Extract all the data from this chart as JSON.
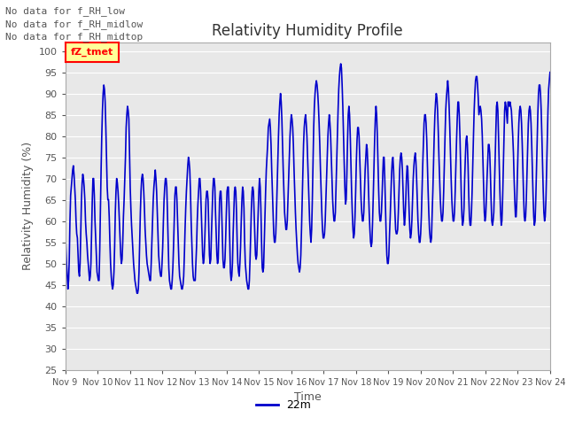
{
  "title": "Relativity Humidity Profile",
  "ylabel": "Relativity Humidity (%)",
  "xlabel": "Time",
  "ylim": [
    25,
    102
  ],
  "yticks": [
    25,
    30,
    35,
    40,
    45,
    50,
    55,
    60,
    65,
    70,
    75,
    80,
    85,
    90,
    95,
    100
  ],
  "line_color": "#0000CC",
  "line_width": 1.2,
  "legend_label": "22m",
  "annotations": [
    "No data for f_RH_low",
    "No data for f_RH_midlow",
    "No data for f_RH_midtop"
  ],
  "annotation_box_label": "fZ_tmet",
  "x_tick_labels": [
    "Nov 9",
    "Nov 10",
    "Nov 11",
    "Nov 12",
    "Nov 13",
    "Nov 14",
    "Nov 15",
    "Nov 16",
    "Nov 17",
    "Nov 18",
    "Nov 19",
    "Nov 20",
    "Nov 21",
    "Nov 22",
    "Nov 23",
    "Nov 24"
  ],
  "background_color": "#ffffff",
  "plot_bg_color": "#e8e8e8",
  "grid_color": "#ffffff",
  "rh_data": [
    59,
    54,
    50,
    47,
    44,
    46,
    51,
    60,
    66,
    68,
    70,
    72,
    73,
    71,
    68,
    65,
    60,
    57,
    56,
    52,
    48,
    47,
    50,
    58,
    65,
    69,
    71,
    70,
    68,
    65,
    60,
    57,
    55,
    52,
    50,
    48,
    46,
    47,
    50,
    58,
    65,
    70,
    70,
    66,
    60,
    56,
    52,
    48,
    47,
    46,
    46,
    53,
    63,
    72,
    80,
    86,
    90,
    92,
    91,
    88,
    82,
    75,
    68,
    65,
    65,
    61,
    55,
    50,
    47,
    45,
    44,
    45,
    48,
    54,
    62,
    67,
    70,
    69,
    67,
    64,
    60,
    56,
    52,
    50,
    51,
    55,
    61,
    65,
    70,
    75,
    82,
    85,
    87,
    86,
    84,
    76,
    68,
    63,
    59,
    56,
    53,
    50,
    48,
    46,
    45,
    44,
    43,
    43,
    44,
    48,
    55,
    62,
    67,
    70,
    71,
    70,
    67,
    63,
    58,
    55,
    52,
    50,
    49,
    48,
    47,
    46,
    46,
    50,
    55,
    60,
    65,
    68,
    70,
    72,
    70,
    67,
    62,
    57,
    52,
    50,
    48,
    47,
    47,
    50,
    54,
    60,
    65,
    68,
    70,
    70,
    68,
    62,
    55,
    49,
    46,
    45,
    44,
    44,
    46,
    49,
    54,
    60,
    66,
    68,
    68,
    65,
    60,
    55,
    50,
    47,
    46,
    45,
    44,
    44,
    45,
    47,
    52,
    58,
    63,
    67,
    70,
    73,
    75,
    74,
    72,
    67,
    60,
    55,
    50,
    47,
    46,
    46,
    46,
    50,
    54,
    60,
    64,
    67,
    70,
    70,
    67,
    62,
    57,
    52,
    50,
    51,
    55,
    60,
    65,
    67,
    67,
    65,
    58,
    52,
    50,
    51,
    57,
    62,
    67,
    70,
    70,
    68,
    62,
    57,
    52,
    50,
    51,
    58,
    65,
    67,
    67,
    63,
    57,
    51,
    49,
    49,
    51,
    56,
    62,
    67,
    68,
    68,
    63,
    55,
    48,
    46,
    47,
    50,
    57,
    62,
    67,
    68,
    67,
    62,
    55,
    50,
    48,
    47,
    50,
    54,
    60,
    65,
    68,
    67,
    63,
    55,
    50,
    48,
    46,
    45,
    44,
    44,
    46,
    51,
    57,
    63,
    67,
    68,
    67,
    62,
    57,
    52,
    51,
    52,
    57,
    62,
    67,
    70,
    68,
    63,
    55,
    49,
    48,
    49,
    55,
    61,
    67,
    72,
    75,
    78,
    82,
    83,
    84,
    82,
    78,
    72,
    67,
    62,
    57,
    55,
    55,
    57,
    62,
    68,
    74,
    80,
    85,
    88,
    90,
    88,
    84,
    78,
    72,
    67,
    62,
    60,
    58,
    58,
    60,
    65,
    70,
    75,
    80,
    83,
    85,
    84,
    82,
    78,
    72,
    67,
    62,
    58,
    55,
    52,
    50,
    49,
    48,
    49,
    52,
    58,
    65,
    72,
    78,
    82,
    84,
    85,
    83,
    80,
    75,
    70,
    65,
    60,
    57,
    55,
    58,
    65,
    74,
    82,
    87,
    90,
    92,
    93,
    92,
    90,
    87,
    83,
    78,
    72,
    67,
    62,
    58,
    56,
    56,
    57,
    60,
    65,
    70,
    75,
    80,
    83,
    85,
    83,
    80,
    75,
    70,
    65,
    62,
    60,
    60,
    62,
    68,
    74,
    80,
    86,
    91,
    94,
    96,
    97,
    96,
    92,
    87,
    80,
    74,
    68,
    64,
    65,
    71,
    79,
    85,
    87,
    85,
    80,
    73,
    67,
    62,
    58,
    56,
    57,
    61,
    67,
    74,
    79,
    82,
    82,
    80,
    75,
    70,
    65,
    62,
    60,
    60,
    62,
    67,
    72,
    75,
    78,
    77,
    73,
    67,
    62,
    58,
    55,
    54,
    55,
    60,
    66,
    73,
    79,
    84,
    87,
    85,
    80,
    73,
    67,
    62,
    60,
    60,
    62,
    66,
    71,
    75,
    75,
    70,
    63,
    57,
    52,
    50,
    50,
    52,
    57,
    61,
    66,
    71,
    74,
    75,
    72,
    67,
    62,
    58,
    57,
    57,
    58,
    62,
    67,
    72,
    75,
    76,
    75,
    72,
    67,
    62,
    59,
    61,
    65,
    70,
    73,
    72,
    67,
    62,
    58,
    56,
    57,
    60,
    65,
    70,
    73,
    75,
    76,
    74,
    70,
    65,
    60,
    57,
    55,
    55,
    57,
    61,
    67,
    73,
    78,
    83,
    85,
    85,
    83,
    79,
    73,
    67,
    62,
    58,
    56,
    55,
    56,
    62,
    67,
    74,
    80,
    85,
    88,
    90,
    89,
    86,
    81,
    75,
    70,
    65,
    62,
    60,
    60,
    62,
    67,
    74,
    80,
    86,
    89,
    91,
    93,
    91,
    87,
    82,
    76,
    70,
    65,
    62,
    60,
    60,
    62,
    67,
    73,
    79,
    84,
    88,
    88,
    85,
    80,
    73,
    66,
    61,
    59,
    60,
    63,
    70,
    75,
    79,
    80,
    78,
    73,
    66,
    61,
    59,
    59,
    62,
    67,
    74,
    80,
    86,
    90,
    93,
    94,
    94,
    92,
    89,
    85,
    86,
    87,
    86,
    84,
    80,
    74,
    68,
    62,
    60,
    61,
    65,
    70,
    74,
    78,
    78,
    76,
    71,
    65,
    60,
    59,
    60,
    62,
    68,
    75,
    81,
    87,
    88,
    86,
    80,
    73,
    67,
    62,
    59,
    60,
    65,
    72,
    79,
    86,
    88,
    87,
    85,
    83,
    88,
    88,
    87,
    88,
    87,
    86,
    83,
    80,
    76,
    70,
    65,
    61,
    61,
    65,
    72,
    78,
    83,
    86,
    87,
    86,
    83,
    78,
    72,
    66,
    61,
    60,
    61,
    65,
    71,
    77,
    83,
    86,
    87,
    86,
    83,
    78,
    72,
    66,
    61,
    59,
    60,
    65,
    72,
    79,
    85,
    90,
    92,
    92,
    90,
    86,
    80,
    73,
    67,
    62,
    60,
    61,
    65,
    72,
    79,
    86,
    91,
    93,
    95
  ]
}
